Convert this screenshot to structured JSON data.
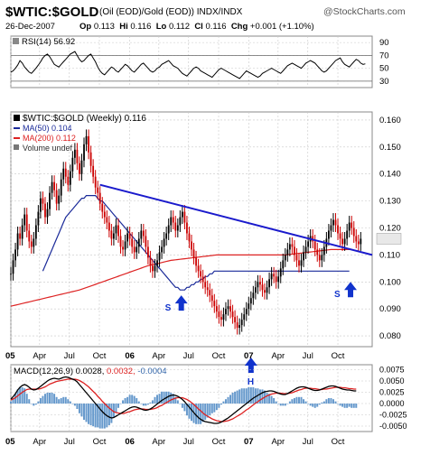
{
  "header": {
    "symbol": "$WTIC:$GOLD",
    "description": "(Oil (EOD)/Gold (EOD))  INDX/INDX",
    "logo": "@StockCharts.com",
    "date": "26-Dec-2007",
    "quote": [
      {
        "k": "Op",
        "v": "0.113"
      },
      {
        "k": "Hi",
        "v": "0.116"
      },
      {
        "k": "Lo",
        "v": "0.112"
      },
      {
        "k": "Cl",
        "v": "0.116"
      },
      {
        "k": "Chg",
        "v": "+0.001 (+1.10%)"
      }
    ]
  },
  "colors": {
    "price": "#000000",
    "price_down": "#cc0000",
    "ma50": "#1a2a99",
    "ma200": "#dd2222",
    "trendline": "#1a1acc",
    "macd": "#000000",
    "signal": "#dd2222",
    "histogram": "#6699cc",
    "arrow": "#1133cc",
    "grid": "#c8c8c8"
  },
  "chart_data": [
    {
      "type": "line",
      "panel": "rsi",
      "label": "RSI(14) 56.92",
      "series": [
        {
          "name": "RSI(14)",
          "last": 56.92
        }
      ],
      "reference_lines": [
        70,
        30
      ],
      "yticks": [
        90,
        70,
        50,
        30
      ],
      "ylim": [
        20,
        100
      ],
      "x_start": "2005-01-03",
      "values": [
        44,
        46,
        50,
        55,
        62,
        58,
        52,
        48,
        44,
        42,
        46,
        50,
        55,
        60,
        66,
        70,
        72,
        68,
        62,
        56,
        54,
        52,
        56,
        60,
        64,
        68,
        72,
        74,
        76,
        70,
        64,
        60,
        62,
        66,
        70,
        72,
        66,
        60,
        52,
        46,
        42,
        40,
        44,
        48,
        52,
        50,
        46,
        44,
        48,
        52,
        56,
        54,
        50,
        46,
        44,
        48,
        52,
        56,
        58,
        54,
        50,
        46,
        44,
        46,
        50,
        52,
        56,
        58,
        60,
        62,
        58,
        54,
        52,
        50,
        46,
        42,
        40,
        38,
        42,
        46,
        50,
        52,
        50,
        46,
        44,
        42,
        40,
        38,
        36,
        40,
        44,
        48,
        50,
        48,
        46,
        44,
        42,
        40,
        38,
        36,
        34,
        38,
        42,
        46,
        44,
        42,
        40,
        38,
        36,
        38,
        42,
        44,
        46,
        48,
        50,
        48,
        46,
        44,
        42,
        46,
        50,
        54,
        56,
        58,
        56,
        54,
        52,
        50,
        54,
        58,
        60,
        62,
        60,
        58,
        54,
        50,
        46,
        44,
        46,
        50,
        54,
        58,
        62,
        64,
        66,
        60,
        56,
        54,
        52,
        56,
        60,
        64,
        62,
        58,
        56,
        56.92
      ]
    },
    {
      "type": "candlestick",
      "panel": "price",
      "label": "$WTIC:$GOLD (Weekly) 0.116",
      "series": [
        {
          "name": "$WTIC:$GOLD (Weekly)",
          "last": 0.116
        },
        {
          "name": "MA(50)",
          "last": 0.104
        },
        {
          "name": "MA(200)",
          "last": 0.112
        },
        {
          "name": "Volume",
          "last": "undef"
        }
      ],
      "yticks": [
        0.16,
        0.15,
        0.14,
        0.13,
        0.12,
        0.11,
        0.1,
        0.09,
        0.08
      ],
      "ylim": [
        0.076,
        0.163
      ],
      "x_start": "2005-01-03",
      "close": [
        0.103,
        0.108,
        0.112,
        0.118,
        0.116,
        0.121,
        0.125,
        0.119,
        0.115,
        0.113,
        0.116,
        0.121,
        0.126,
        0.131,
        0.129,
        0.124,
        0.127,
        0.133,
        0.137,
        0.134,
        0.129,
        0.132,
        0.138,
        0.142,
        0.139,
        0.136,
        0.141,
        0.146,
        0.149,
        0.144,
        0.14,
        0.145,
        0.151,
        0.154,
        0.148,
        0.143,
        0.139,
        0.135,
        0.133,
        0.129,
        0.126,
        0.124,
        0.122,
        0.119,
        0.116,
        0.118,
        0.121,
        0.117,
        0.113,
        0.112,
        0.115,
        0.118,
        0.116,
        0.113,
        0.111,
        0.113,
        0.116,
        0.119,
        0.117,
        0.113,
        0.109,
        0.106,
        0.104,
        0.106,
        0.108,
        0.111,
        0.113,
        0.116,
        0.118,
        0.121,
        0.124,
        0.122,
        0.119,
        0.121,
        0.124,
        0.126,
        0.122,
        0.118,
        0.115,
        0.112,
        0.109,
        0.106,
        0.104,
        0.102,
        0.1,
        0.098,
        0.097,
        0.095,
        0.093,
        0.091,
        0.089,
        0.087,
        0.086,
        0.088,
        0.09,
        0.091,
        0.089,
        0.087,
        0.085,
        0.083,
        0.084,
        0.086,
        0.088,
        0.09,
        0.092,
        0.094,
        0.096,
        0.098,
        0.1,
        0.099,
        0.097,
        0.096,
        0.098,
        0.101,
        0.103,
        0.102,
        0.1,
        0.102,
        0.105,
        0.108,
        0.11,
        0.112,
        0.114,
        0.113,
        0.11,
        0.108,
        0.106,
        0.108,
        0.111,
        0.113,
        0.115,
        0.117,
        0.115,
        0.112,
        0.11,
        0.108,
        0.11,
        0.113,
        0.116,
        0.119,
        0.121,
        0.123,
        0.121,
        0.118,
        0.116,
        0.114,
        0.116,
        0.119,
        0.122,
        0.12,
        0.117,
        0.115,
        0.114,
        0.116
      ],
      "ma50": {
        "x_start_index": 14,
        "values": [
          0.104,
          0.106,
          0.108,
          0.11,
          0.112,
          0.114,
          0.116,
          0.118,
          0.12,
          0.122,
          0.124,
          0.125,
          0.126,
          0.127,
          0.128,
          0.129,
          0.13,
          0.131,
          0.131,
          0.132,
          0.132,
          0.132,
          0.132,
          0.132,
          0.131,
          0.13,
          0.13,
          0.129,
          0.128,
          0.127,
          0.126,
          0.125,
          0.124,
          0.123,
          0.122,
          0.121,
          0.12,
          0.119,
          0.118,
          0.117,
          0.116,
          0.115,
          0.114,
          0.113,
          0.112,
          0.111,
          0.11,
          0.109,
          0.108,
          0.107,
          0.106,
          0.105,
          0.104,
          0.103,
          0.102,
          0.101,
          0.1,
          0.099,
          0.098,
          0.098,
          0.097,
          0.097,
          0.097,
          0.098,
          0.098,
          0.099,
          0.099,
          0.1,
          0.1,
          0.101,
          0.101,
          0.102,
          0.102,
          0.103,
          0.103,
          0.104,
          0.104,
          0.104,
          0.104,
          0.104,
          0.104,
          0.104,
          0.104,
          0.104,
          0.104,
          0.104,
          0.104,
          0.104,
          0.104,
          0.104,
          0.104,
          0.104,
          0.104,
          0.104,
          0.104,
          0.104,
          0.104,
          0.104,
          0.104,
          0.104,
          0.104,
          0.104,
          0.104,
          0.104,
          0.104,
          0.104,
          0.104,
          0.104,
          0.104,
          0.104,
          0.104,
          0.104,
          0.104,
          0.104,
          0.104,
          0.104,
          0.104,
          0.104,
          0.104,
          0.104,
          0.104,
          0.104,
          0.104,
          0.104,
          0.104,
          0.104,
          0.104,
          0.104,
          0.104,
          0.104,
          0.104,
          0.104,
          0.104,
          0.104,
          0.104
        ]
      },
      "ma200": {
        "x_start_index": 0,
        "values": [
          0.091,
          0.0912,
          0.0914,
          0.0916,
          0.0918,
          0.092,
          0.0922,
          0.0924,
          0.0926,
          0.0928,
          0.093,
          0.0932,
          0.0934,
          0.0936,
          0.0938,
          0.094,
          0.0942,
          0.0944,
          0.0946,
          0.0948,
          0.095,
          0.0952,
          0.0954,
          0.0956,
          0.0958,
          0.096,
          0.0962,
          0.0964,
          0.0966,
          0.0968,
          0.097,
          0.0973,
          0.0976,
          0.0979,
          0.0982,
          0.0985,
          0.0988,
          0.0991,
          0.0994,
          0.0997,
          0.1,
          0.1003,
          0.1006,
          0.1009,
          0.1012,
          0.1015,
          0.1018,
          0.1021,
          0.1024,
          0.1027,
          0.103,
          0.1033,
          0.1036,
          0.1039,
          0.1042,
          0.1045,
          0.1048,
          0.1051,
          0.1054,
          0.1057,
          0.106,
          0.1062,
          0.1064,
          0.1066,
          0.1068,
          0.107,
          0.1072,
          0.1074,
          0.1076,
          0.1078,
          0.108,
          0.1081,
          0.1082,
          0.1083,
          0.1084,
          0.1085,
          0.1086,
          0.1087,
          0.1088,
          0.1089,
          0.109,
          0.1091,
          0.1092,
          0.1093,
          0.1094,
          0.1095,
          0.1096,
          0.1097,
          0.1098,
          0.1099,
          0.11,
          0.11,
          0.11,
          0.11,
          0.11,
          0.11,
          0.11,
          0.11,
          0.11,
          0.11,
          0.11,
          0.11,
          0.11,
          0.11,
          0.11,
          0.11,
          0.11,
          0.11,
          0.11,
          0.11,
          0.11,
          0.11,
          0.11,
          0.11,
          0.11,
          0.11,
          0.11,
          0.11,
          0.11,
          0.11,
          0.11,
          0.1101,
          0.1102,
          0.1103,
          0.1104,
          0.1105,
          0.1106,
          0.1107,
          0.1108,
          0.1109,
          0.111,
          0.1111,
          0.1112,
          0.1113,
          0.1114,
          0.1115,
          0.1116,
          0.1117,
          0.1118,
          0.1119,
          0.112,
          0.112,
          0.112,
          0.112,
          0.112,
          0.112,
          0.112,
          0.112,
          0.112,
          0.112
        ]
      },
      "trendline": {
        "from": [
          "2005-10-03",
          0.136
        ],
        "to": [
          "2008-01-14",
          0.11
        ]
      },
      "annotations": [
        {
          "text": "S",
          "date": "2006-05-01",
          "value": 0.092
        },
        {
          "text": "H",
          "date": "2007-01-08",
          "value": 0.0755
        },
        {
          "text": "S",
          "date": "2007-10-01",
          "value": 0.097
        }
      ]
    },
    {
      "type": "line",
      "panel": "macd",
      "label_parts": [
        {
          "text": "MACD(12,26,9) 0.0028,",
          "color": "#000000"
        },
        {
          "text": "0.0032,",
          "color": "#dd2222"
        },
        {
          "text": "-0.0004",
          "color": "#3366aa"
        }
      ],
      "series": [
        {
          "name": "MACD(12,26,9)",
          "last": 0.0028
        },
        {
          "name": "Signal",
          "last": 0.0032
        },
        {
          "name": "Histogram",
          "last": -0.0004
        }
      ],
      "yticks": [
        0.0075,
        0.005,
        0.0025,
        0.0,
        -0.0025,
        -0.005
      ],
      "ylim": [
        -0.0062,
        0.0086
      ],
      "x_start": "2005-01-03",
      "macd": [
        0.001,
        0.0015,
        0.0022,
        0.003,
        0.0036,
        0.004,
        0.0042,
        0.004,
        0.0036,
        0.0032,
        0.003,
        0.0031,
        0.0034,
        0.0038,
        0.0042,
        0.0046,
        0.005,
        0.0053,
        0.0055,
        0.0056,
        0.0055,
        0.0054,
        0.0056,
        0.0058,
        0.0059,
        0.0058,
        0.0056,
        0.0054,
        0.0052,
        0.0048,
        0.0042,
        0.0036,
        0.003,
        0.0024,
        0.0018,
        0.0012,
        0.0006,
        0.0,
        -0.0006,
        -0.0012,
        -0.0018,
        -0.0023,
        -0.0027,
        -0.003,
        -0.0032,
        -0.0031,
        -0.0028,
        -0.0025,
        -0.0022,
        -0.0019,
        -0.0016,
        -0.0013,
        -0.001,
        -0.0008,
        -0.0007,
        -0.0008,
        -0.001,
        -0.0012,
        -0.0014,
        -0.0015,
        -0.0014,
        -0.0012,
        -0.0009,
        -0.0005,
        -0.0001,
        0.0003,
        0.0007,
        0.001,
        0.0013,
        0.0016,
        0.0018,
        0.0019,
        0.0018,
        0.0016,
        0.0013,
        0.0009,
        0.0004,
        -0.0002,
        -0.0008,
        -0.0014,
        -0.002,
        -0.0026,
        -0.0031,
        -0.0035,
        -0.0038,
        -0.004,
        -0.0041,
        -0.0042,
        -0.0043,
        -0.0044,
        -0.0044,
        -0.0043,
        -0.0041,
        -0.0038,
        -0.0035,
        -0.0032,
        -0.0028,
        -0.0024,
        -0.002,
        -0.0016,
        -0.0012,
        -0.0008,
        -0.0004,
        0.0,
        0.0004,
        0.0008,
        0.0012,
        0.0015,
        0.0018,
        0.0021,
        0.0024,
        0.0026,
        0.0027,
        0.0028,
        0.0028,
        0.0027,
        0.0025,
        0.0023,
        0.0021,
        0.002,
        0.002,
        0.0022,
        0.0025,
        0.0028,
        0.0031,
        0.0034,
        0.0036,
        0.0037,
        0.0037,
        0.0036,
        0.0034,
        0.0032,
        0.003,
        0.0029,
        0.0029,
        0.003,
        0.0032,
        0.0034,
        0.0036,
        0.0038,
        0.0039,
        0.0039,
        0.0038,
        0.0036,
        0.0034,
        0.0032,
        0.0031,
        0.003,
        0.003,
        0.0029,
        0.0028,
        0.0028
      ],
      "signal": [
        0.0008,
        0.001,
        0.0013,
        0.0017,
        0.0021,
        0.0025,
        0.0028,
        0.0031,
        0.0032,
        0.0032,
        0.0032,
        0.0032,
        0.0032,
        0.0033,
        0.0035,
        0.0037,
        0.004,
        0.0043,
        0.0045,
        0.0047,
        0.0049,
        0.005,
        0.0051,
        0.0052,
        0.0053,
        0.0054,
        0.0054,
        0.0054,
        0.0054,
        0.0053,
        0.0051,
        0.0048,
        0.0045,
        0.0041,
        0.0037,
        0.0032,
        0.0027,
        0.0022,
        0.0016,
        0.0011,
        0.0005,
        0.0,
        -0.0005,
        -0.001,
        -0.0014,
        -0.0018,
        -0.002,
        -0.0021,
        -0.0022,
        -0.0022,
        -0.0021,
        -0.0019,
        -0.0018,
        -0.0016,
        -0.0014,
        -0.0013,
        -0.0012,
        -0.0012,
        -0.0012,
        -0.0013,
        -0.0013,
        -0.0013,
        -0.0012,
        -0.0011,
        -0.0009,
        -0.0006,
        -0.0004,
        -0.0001,
        0.0002,
        0.0005,
        0.0008,
        0.001,
        0.0012,
        0.0013,
        0.0013,
        0.0013,
        0.0011,
        0.0009,
        0.0006,
        0.0002,
        -0.0002,
        -0.0007,
        -0.0012,
        -0.0016,
        -0.0021,
        -0.0025,
        -0.0028,
        -0.0031,
        -0.0034,
        -0.0036,
        -0.0038,
        -0.0039,
        -0.004,
        -0.004,
        -0.0039,
        -0.0038,
        -0.0036,
        -0.0034,
        -0.0031,
        -0.0028,
        -0.0025,
        -0.0022,
        -0.0018,
        -0.0014,
        -0.0011,
        -0.0007,
        -0.0003,
        0.0001,
        0.0004,
        0.0008,
        0.0011,
        0.0014,
        0.0017,
        0.0019,
        0.0021,
        0.0022,
        0.0023,
        0.0023,
        0.0023,
        0.0022,
        0.0022,
        0.0022,
        0.0023,
        0.0024,
        0.0026,
        0.0028,
        0.003,
        0.0031,
        0.0033,
        0.0034,
        0.0034,
        0.0034,
        0.0033,
        0.0033,
        0.0032,
        0.0031,
        0.0031,
        0.0032,
        0.0032,
        0.0033,
        0.0034,
        0.0035,
        0.0036,
        0.0036,
        0.0036,
        0.0035,
        0.0035,
        0.0034,
        0.0033,
        0.0033,
        0.0032,
        0.0032
      ]
    }
  ],
  "x_axis": {
    "start": "2005-01-03",
    "end": "2008-01-14",
    "ticks": [
      {
        "label": "05",
        "date": "2005-01-03",
        "bold": true
      },
      {
        "label": "Apr",
        "date": "2005-04-01"
      },
      {
        "label": "Jul",
        "date": "2005-07-01"
      },
      {
        "label": "Oct",
        "date": "2005-10-01"
      },
      {
        "label": "06",
        "date": "2006-01-02",
        "bold": true
      },
      {
        "label": "Apr",
        "date": "2006-04-01"
      },
      {
        "label": "Jul",
        "date": "2006-07-01"
      },
      {
        "label": "Oct",
        "date": "2006-10-01"
      },
      {
        "label": "07",
        "date": "2007-01-01",
        "bold": true
      },
      {
        "label": "Apr",
        "date": "2007-04-01"
      },
      {
        "label": "Jul",
        "date": "2007-07-01"
      },
      {
        "label": "Oct",
        "date": "2007-10-01"
      }
    ]
  }
}
